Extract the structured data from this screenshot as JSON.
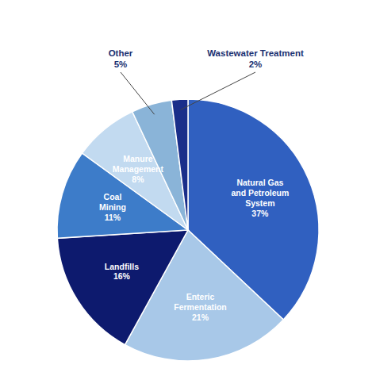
{
  "chart_data": {
    "type": "pie",
    "categories": [
      "Natural Gas\nand Petroleum\nSystem",
      "Enteric\nFermentation",
      "Landfills",
      "Coal\nMining",
      "Manure\nManagement",
      "Other",
      "Wastewater Treatment"
    ],
    "values": [
      37,
      21,
      16,
      11,
      8,
      5,
      2
    ],
    "value_labels": [
      "37%",
      "21%",
      "16%",
      "11%",
      "8%",
      "5%",
      "2%"
    ],
    "colors": [
      "#3060c0",
      "#a8c8e8",
      "#0d1a6e",
      "#3d7cc9",
      "#c2daf0",
      "#8ab4d8",
      "#1a2e8a"
    ],
    "data_labels": true
  }
}
